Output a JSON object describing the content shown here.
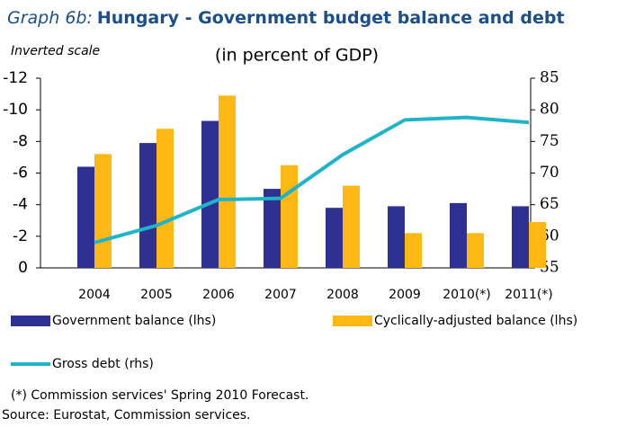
{
  "chart_data": {
    "type": "bar_line",
    "title_prefix": "Graph 6b:",
    "title": "Hungary - Government budget balance and debt",
    "subtitle": "(in percent of GDP)",
    "annotation": "Inverted scale",
    "categories": [
      "2004",
      "2005",
      "2006",
      "2007",
      "2008",
      "2009",
      "2010(*)",
      "2011(*)"
    ],
    "series": [
      {
        "name": "Government balance (lhs)",
        "type": "bar",
        "color": "#2e3192",
        "values": [
          -6.4,
          -7.9,
          -9.3,
          -5.0,
          -3.8,
          -3.9,
          -4.1,
          -3.9
        ]
      },
      {
        "name": "Cyclically-adjusted balance (lhs)",
        "type": "bar",
        "color": "#fdb813",
        "values": [
          -7.2,
          -8.8,
          -10.9,
          -6.5,
          -5.2,
          -2.2,
          -2.2,
          -2.9
        ]
      },
      {
        "name": "Gross debt (rhs)",
        "type": "line",
        "axis": "y2",
        "color": "#1fb4c8",
        "values": [
          59.0,
          61.7,
          65.8,
          66.0,
          72.9,
          78.4,
          78.8,
          78.0
        ]
      }
    ],
    "ylim": [
      0,
      -12
    ],
    "yticks": [
      -12,
      -10,
      -8,
      -6,
      -4,
      -2,
      0
    ],
    "y2lim": [
      55,
      85
    ],
    "y2ticks": [
      85,
      80,
      75,
      70,
      65,
      60,
      55
    ],
    "footnotes": [
      "(*) Commission services' Spring 2010 Forecast.",
      "Source: Eurostat, Commission services."
    ]
  }
}
